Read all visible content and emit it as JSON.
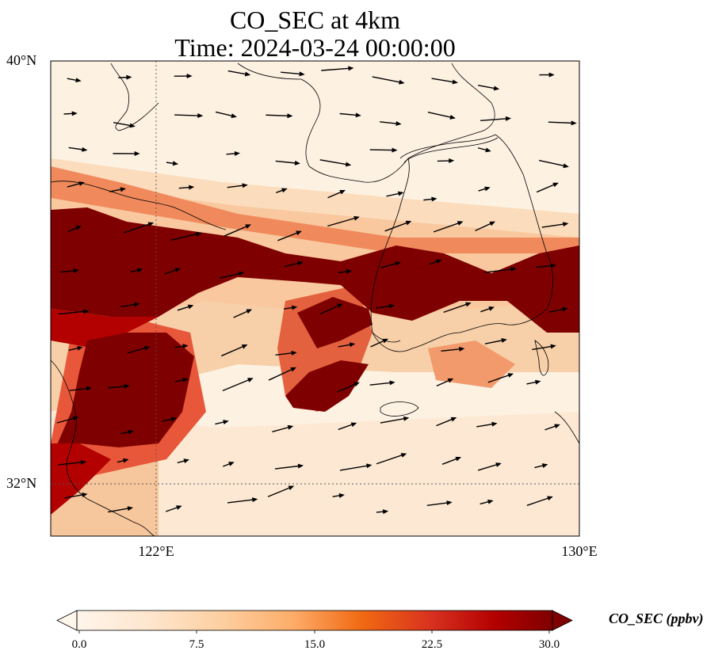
{
  "title_line1": "CO_SEC at 4km",
  "title_line2": "Time: 2024-03-24 00:00:00",
  "lat_labels": [
    "40°N",
    "32°N"
  ],
  "lon_labels": [
    "122°E",
    "130°E"
  ],
  "colorbar": {
    "label": "CO_SEC (ppbv)",
    "ticks": [
      "0.0",
      "7.5",
      "15.0",
      "22.5",
      "30.0"
    ],
    "min": 0,
    "max": 30,
    "colormap": [
      "#fff5eb",
      "#fee6ce",
      "#fdd0a2",
      "#fdae6b",
      "#fd8d3c",
      "#f16913",
      "#d94801",
      "#b01010",
      "#7f0000"
    ],
    "extend": "both"
  },
  "map_extent": {
    "lon": [
      120,
      130
    ],
    "lat": [
      31,
      40
    ]
  },
  "gridlines": {
    "lon": [
      122
    ],
    "lat": [
      32
    ]
  },
  "field_description": "High CO_SEC plume band across Shandong-Yellow Sea-Korea-Japan; low values over Bohai and East China Sea",
  "wind_vectors": "west-southwest to east-northeast flow"
}
